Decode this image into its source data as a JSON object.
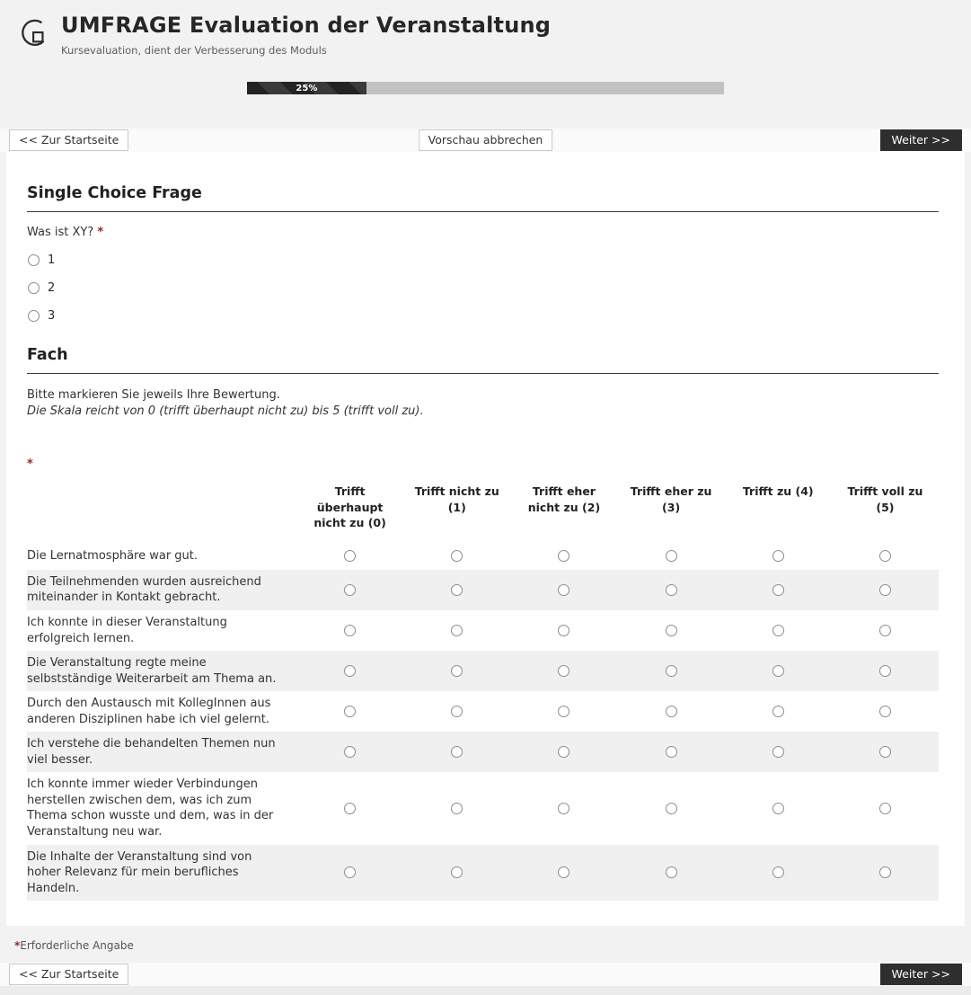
{
  "header": {
    "title": "UMFRAGE Evaluation der Veranstaltung",
    "subtitle": "Kursevaluation, dient der Verbesserung des Moduls"
  },
  "progress": {
    "percent": 25,
    "label": "25%"
  },
  "nav": {
    "back_label": "<< Zur Startseite",
    "cancel_label": "Vorschau abbrechen",
    "next_label": "Weiter >>"
  },
  "misc": {
    "required_mark": "*"
  },
  "single_choice": {
    "section_title": "Single Choice Frage",
    "question": "Was ist XY?",
    "options": [
      "1",
      "2",
      "3"
    ]
  },
  "matrix": {
    "section_title": "Fach",
    "instruction": "Bitte markieren Sie jeweils Ihre Bewertung.",
    "scale_note": "Die Skala reicht von 0 (trifft überhaupt nicht zu) bis 5 (trifft voll zu).",
    "columns": [
      "Trifft überhaupt nicht zu (0)",
      "Trifft nicht zu (1)",
      "Trifft eher nicht zu (2)",
      "Trifft eher zu (3)",
      "Trifft zu (4)",
      "Trifft voll zu (5)"
    ],
    "rows": [
      "Die Lernatmosphäre war gut.",
      "Die Teilnehmenden wurden ausreichend miteinan­der in Kontakt gebracht.",
      "Ich konnte in dieser Veranstaltung erfolgreich lernen.",
      "Die Veranstaltung regte meine selbstständige Wei­terarbeit am Thema an.",
      "Durch den Austausch mit KollegInnen aus anderen Disziplinen habe ich viel gelernt.",
      "Ich verstehe die behandelten Themen nun viel besser.",
      "Ich konnte immer wieder Verbindungen herstellen zwischen dem, was ich zum Thema schon wusste und dem, was in der Veranstaltung neu war.",
      "Die Inhalte der Veranstaltung sind von hoher Rele­vanz für mein berufliches Handeln."
    ]
  },
  "footer": {
    "required_note": "Erforderliche Angabe"
  },
  "colors": {
    "accent_dark": "#2e2e2e",
    "required_red": "#a02622",
    "row_stripe": "#f0f0f0",
    "progress_track": "#c2c2c2",
    "progress_fill": "#232323"
  }
}
